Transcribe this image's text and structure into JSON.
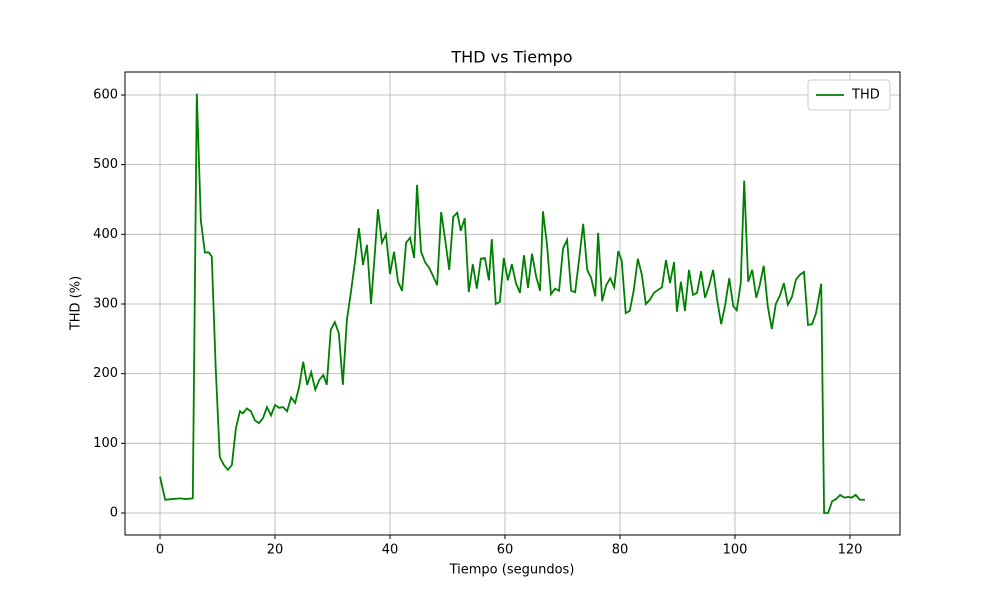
{
  "chart_data": {
    "type": "line",
    "title": "THD vs Tiempo",
    "x_label": "Tiempo (segundos)",
    "y_label": "THD (%)",
    "x": [
      0,
      0.9,
      2,
      3.5,
      4.5,
      5.7,
      6.4,
      7.1,
      7.8,
      8.5,
      9.0,
      9.7,
      10.4,
      11.1,
      11.8,
      12.5,
      13.2,
      13.9,
      14.4,
      15.1,
      15.8,
      16.5,
      17.2,
      17.9,
      18.6,
      19.3,
      20,
      20.7,
      21.4,
      22.1,
      22.8,
      23.5,
      24.2,
      24.9,
      25.6,
      26.3,
      27,
      27.7,
      28.4,
      29.0,
      29.7,
      30.4,
      31.1,
      31.8,
      32.5,
      33.2,
      33.9,
      34.6,
      35.3,
      36,
      36.7,
      37.4,
      37.9,
      38.6,
      39.3,
      40,
      40.7,
      41.4,
      42.1,
      42.8,
      43.5,
      44.2,
      44.7,
      45.4,
      46.1,
      46.8,
      47.5,
      48.2,
      48.9,
      49.6,
      50.3,
      51,
      51.7,
      52.3,
      53,
      53.7,
      54.4,
      55.1,
      55.8,
      56.5,
      57.2,
      57.7,
      58.4,
      59.1,
      59.8,
      60.5,
      61.2,
      61.9,
      62.6,
      63.3,
      64,
      64.7,
      65.4,
      66.1,
      66.6,
      67.3,
      68,
      68.7,
      69.4,
      70.1,
      70.8,
      71.5,
      72.2,
      72.9,
      73.6,
      74.3,
      75,
      75.7,
      76.2,
      76.9,
      77.6,
      78.3,
      79,
      79.7,
      80.3,
      81,
      81.7,
      82.4,
      83.1,
      83.8,
      84.5,
      85.2,
      85.9,
      86.6,
      87.3,
      88,
      88.7,
      89.4,
      89.9,
      90.6,
      91.3,
      92,
      92.7,
      93.4,
      94.1,
      94.8,
      95.5,
      96.2,
      96.9,
      97.6,
      98.3,
      99,
      99.7,
      100.3,
      101,
      101.6,
      102.3,
      103,
      103.7,
      104.3,
      105,
      105.7,
      106.4,
      107.1,
      107.8,
      108.5,
      109.2,
      109.9,
      110.6,
      111.3,
      112,
      112.7,
      113.4,
      114.1,
      115,
      115.5,
      116.2,
      116.9,
      117.6,
      118.3,
      119,
      119.7,
      120.3,
      121,
      121.7,
      122.6
    ],
    "series": [
      {
        "name": "THD",
        "color": "#008000",
        "values": [
          52,
          19,
          20,
          21,
          20,
          21,
          602,
          420,
          374,
          374,
          368,
          205,
          80,
          69,
          62,
          69,
          122,
          146,
          143,
          150,
          146,
          133,
          129,
          136,
          152,
          140,
          155,
          151,
          152,
          146,
          166,
          158,
          181,
          217,
          184,
          202,
          177,
          191,
          198,
          184,
          263,
          274,
          258,
          184,
          277,
          317,
          360,
          409,
          356,
          385,
          300,
          377,
          436,
          388,
          400,
          343,
          375,
          332,
          319,
          388,
          395,
          366,
          471,
          375,
          360,
          352,
          340,
          327,
          432,
          392,
          349,
          425,
          431,
          405,
          423,
          317,
          357,
          322,
          365,
          366,
          334,
          393,
          300,
          303,
          366,
          334,
          357,
          330,
          316,
          370,
          323,
          372,
          340,
          319,
          433,
          386,
          314,
          322,
          319,
          380,
          392,
          319,
          317,
          365,
          415,
          349,
          337,
          311,
          402,
          304,
          327,
          337,
          324,
          376,
          362,
          287,
          290,
          320,
          365,
          342,
          300,
          306,
          316,
          320,
          324,
          363,
          330,
          360,
          289,
          332,
          290,
          349,
          313,
          316,
          347,
          309,
          326,
          349,
          306,
          271,
          299,
          337,
          297,
          291,
          330,
          477,
          332,
          349,
          309,
          327,
          355,
          297,
          264,
          300,
          312,
          330,
          299,
          310,
          335,
          342,
          346,
          270,
          271,
          287,
          329,
          0,
          0,
          17,
          20,
          26,
          22,
          23,
          22,
          26,
          19,
          19
        ]
      }
    ],
    "xlim": [
      -6.09,
      128.7
    ],
    "ylim": [
      -31.6,
      633
    ],
    "xticks": [
      0,
      20,
      40,
      60,
      80,
      100,
      120
    ],
    "yticks": [
      0,
      100,
      200,
      300,
      400,
      500,
      600
    ],
    "grid": true,
    "legend": "upper right"
  }
}
